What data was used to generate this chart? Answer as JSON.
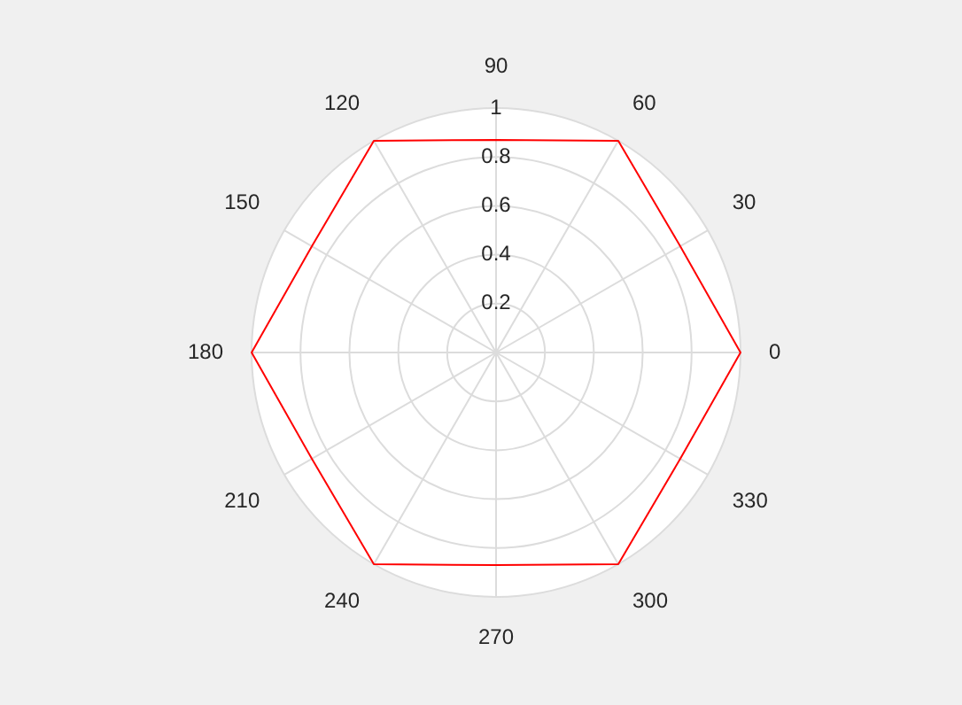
{
  "chart_data": {
    "type": "radar",
    "categories": [
      "90",
      "60",
      "30",
      "0",
      "330",
      "300",
      "270",
      "240",
      "210",
      "180",
      "150",
      "120"
    ],
    "series": [
      {
        "color": "#ff0000",
        "values": [
          0.87,
          1,
          0.87,
          1,
          0.87,
          1,
          0.87,
          1,
          0.87,
          1,
          0.87,
          1
        ]
      }
    ],
    "ylim": [
      0,
      1
    ],
    "yticks": [
      0.2,
      0.4,
      0.6,
      0.8,
      1
    ],
    "grid": true,
    "legend": false,
    "marker": "none",
    "line_style": "solid"
  }
}
